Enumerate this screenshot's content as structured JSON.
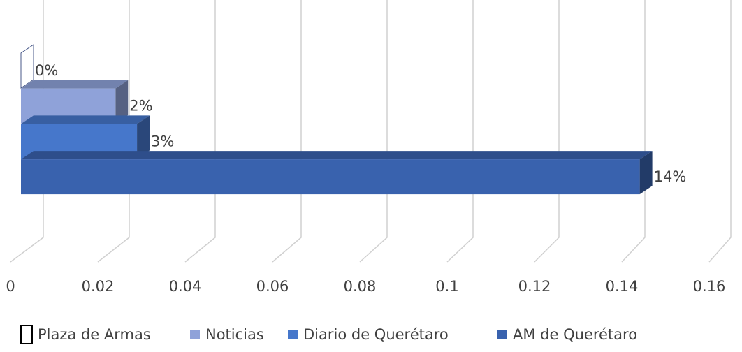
{
  "chart_data": {
    "type": "bar3d-horizontal",
    "categories": [
      null
    ],
    "series": [
      {
        "name": "Plaza de Armas",
        "color": "#ffffff",
        "values": [
          0
        ],
        "value_labels": [
          "0%"
        ]
      },
      {
        "name": "Noticias",
        "color": "#8fa2d9",
        "values": [
          0.022
        ],
        "value_labels": [
          "2%"
        ]
      },
      {
        "name": "Diario de Querétaro",
        "color": "#4677cb",
        "values": [
          0.027
        ],
        "value_labels": [
          "3%"
        ]
      },
      {
        "name": "AM de Querétaro",
        "color": "#3962ae",
        "values": [
          0.144
        ],
        "value_labels": [
          "14%"
        ]
      }
    ],
    "xlim": [
      0,
      0.16
    ],
    "xticks": [
      0,
      0.02,
      0.04,
      0.06,
      0.08,
      0.1,
      0.12,
      0.14,
      0.16
    ],
    "grid": true,
    "legend": "bottom"
  }
}
